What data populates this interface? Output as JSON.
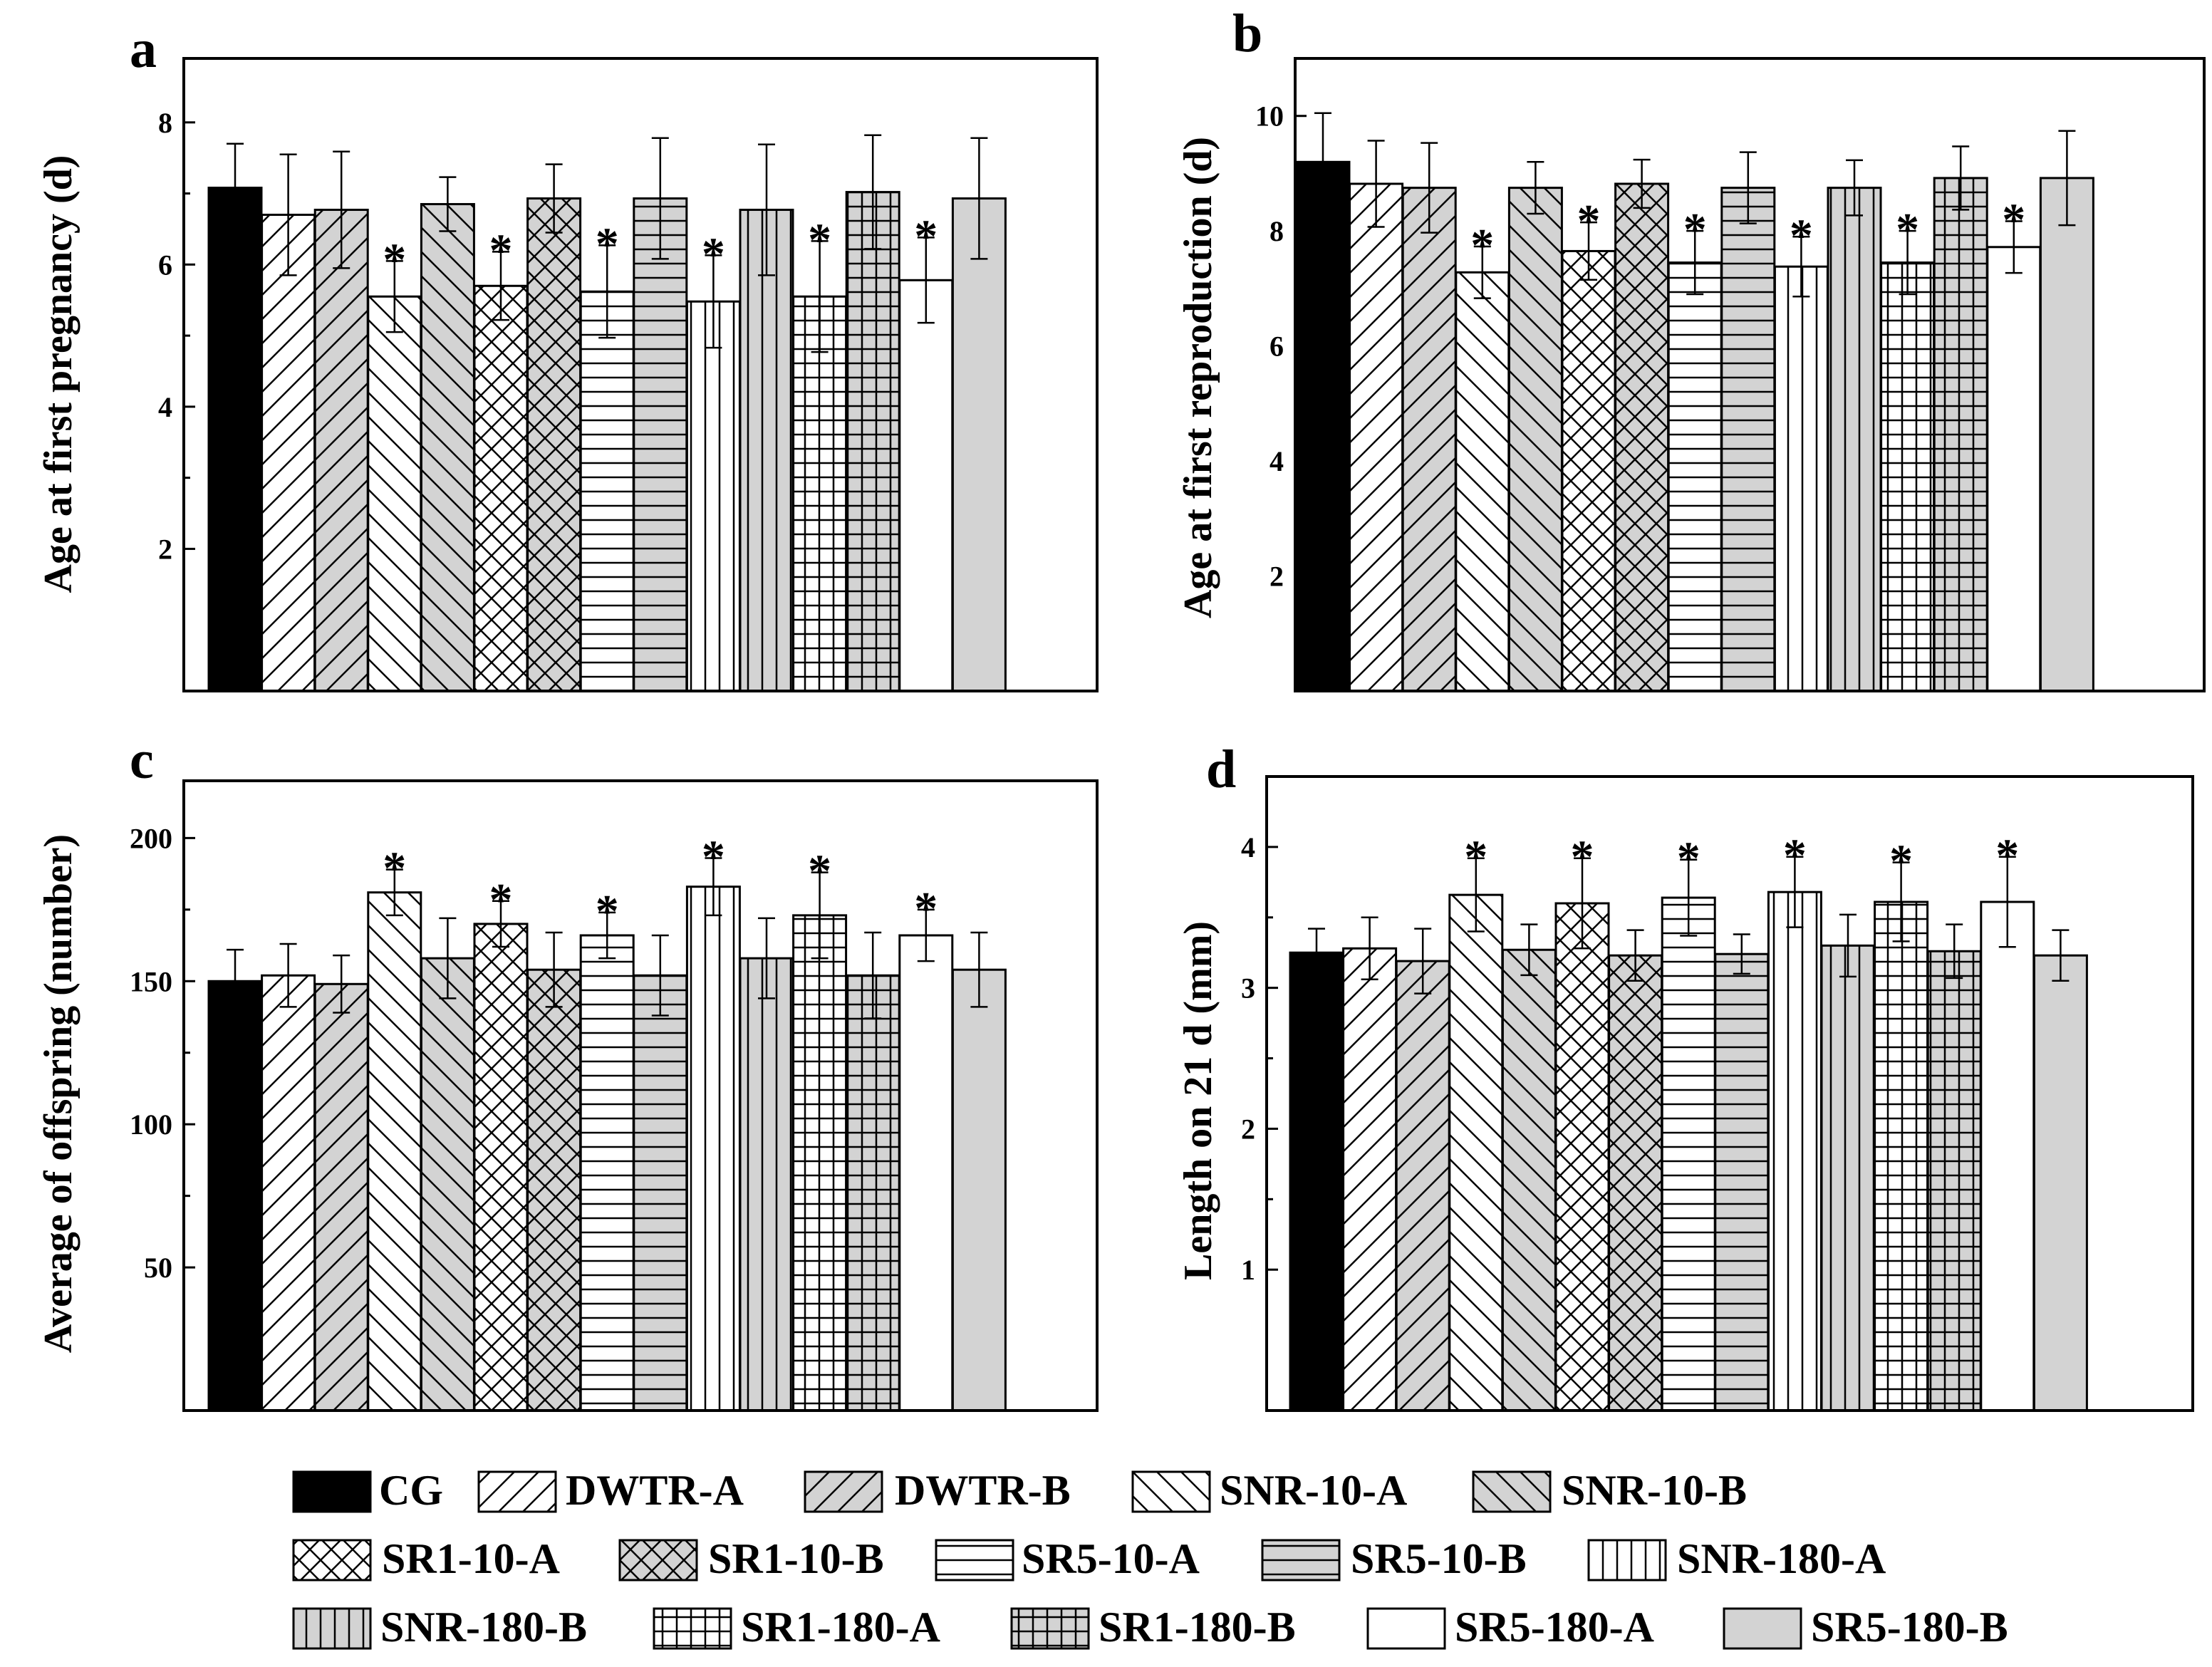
{
  "chart_data": [
    {
      "type": "bar",
      "panel": "a",
      "title": "",
      "xlabel": "",
      "ylabel": "Age at first pregnancy (d)",
      "ylim": [
        0,
        8.9
      ],
      "yticks": [
        2,
        4,
        6,
        8
      ],
      "categories": [
        "CG",
        "DWTR-A",
        "DWTR-B",
        "SNR-10-A",
        "SNR-10-B",
        "SR1-10-A",
        "SR1-10-B",
        "SR5-10-A",
        "SR5-10-B",
        "SNR-180-A",
        "SNR-180-B",
        "SR1-180-A",
        "SR1-180-B",
        "SR5-180-A",
        "SR5-180-B"
      ],
      "values": [
        7.08,
        6.7,
        6.77,
        5.55,
        6.85,
        5.7,
        6.93,
        5.62,
        6.93,
        5.48,
        6.77,
        5.55,
        7.02,
        5.78,
        6.93
      ],
      "errors": [
        0.62,
        0.85,
        0.82,
        0.5,
        0.38,
        0.48,
        0.48,
        0.65,
        0.85,
        0.65,
        0.92,
        0.78,
        0.8,
        0.6,
        0.85
      ],
      "significant": [
        false,
        false,
        false,
        true,
        false,
        true,
        false,
        true,
        false,
        true,
        false,
        true,
        false,
        true,
        false
      ],
      "marker": "*"
    },
    {
      "type": "bar",
      "panel": "b",
      "title": "",
      "xlabel": "",
      "ylabel": "Age at first reproduction (d)",
      "ylim": [
        0,
        11
      ],
      "yticks": [
        2,
        4,
        6,
        8,
        10
      ],
      "categories": [
        "CG",
        "DWTR-A",
        "DWTR-B",
        "SNR-10-A",
        "SNR-10-B",
        "SR1-10-A",
        "SR1-10-B",
        "SR5-10-A",
        "SR5-10-B",
        "SNR-180-A",
        "SNR-180-B",
        "SR1-180-A",
        "SR1-180-B",
        "SR5-180-A",
        "SR5-180-B"
      ],
      "values": [
        9.2,
        8.82,
        8.75,
        7.28,
        8.75,
        7.65,
        8.82,
        7.45,
        8.75,
        7.38,
        8.75,
        7.45,
        8.92,
        7.72,
        8.92
      ],
      "errors": [
        0.85,
        0.75,
        0.78,
        0.45,
        0.45,
        0.5,
        0.42,
        0.55,
        0.62,
        0.52,
        0.48,
        0.55,
        0.55,
        0.45,
        0.82
      ],
      "significant": [
        false,
        false,
        false,
        true,
        false,
        true,
        false,
        true,
        false,
        true,
        false,
        true,
        false,
        true,
        false
      ],
      "marker": "*"
    },
    {
      "type": "bar",
      "panel": "c",
      "title": "",
      "xlabel": "",
      "ylabel": "Average of offspring (number)",
      "ylim": [
        0,
        220
      ],
      "yticks": [
        50,
        100,
        150,
        200
      ],
      "categories": [
        "CG",
        "DWTR-A",
        "DWTR-B",
        "SNR-10-A",
        "SNR-10-B",
        "SR1-10-A",
        "SR1-10-B",
        "SR5-10-A",
        "SR5-10-B",
        "SNR-180-A",
        "SNR-180-B",
        "SR1-180-A",
        "SR1-180-B",
        "SR5-180-A",
        "SR5-180-B"
      ],
      "values": [
        150,
        152,
        149,
        181,
        158,
        170,
        154,
        166,
        152,
        183,
        158,
        173,
        152,
        166,
        154
      ],
      "errors": [
        11,
        11,
        10,
        8,
        14,
        8,
        13,
        8,
        14,
        10,
        14,
        15,
        15,
        9,
        13
      ],
      "significant": [
        false,
        false,
        false,
        true,
        false,
        true,
        false,
        true,
        false,
        true,
        false,
        true,
        false,
        true,
        false
      ],
      "marker": "*"
    },
    {
      "type": "bar",
      "panel": "d",
      "title": "",
      "xlabel": "",
      "ylabel": "Length on 21 d (mm)",
      "ylim": [
        0,
        4.5
      ],
      "yticks": [
        1,
        2,
        3,
        4
      ],
      "categories": [
        "CG",
        "DWTR-A",
        "DWTR-B",
        "SNR-10-A",
        "SNR-10-B",
        "SR1-10-A",
        "SR1-10-B",
        "SR5-10-A",
        "SR5-10-B",
        "SNR-180-A",
        "SNR-180-B",
        "SR1-180-A",
        "SR1-180-B",
        "SR5-180-A",
        "SR5-180-B"
      ],
      "values": [
        3.25,
        3.28,
        3.19,
        3.66,
        3.27,
        3.6,
        3.23,
        3.64,
        3.24,
        3.68,
        3.3,
        3.61,
        3.26,
        3.61,
        3.23
      ],
      "errors": [
        0.17,
        0.22,
        0.23,
        0.26,
        0.18,
        0.32,
        0.18,
        0.27,
        0.14,
        0.25,
        0.22,
        0.28,
        0.19,
        0.32,
        0.18
      ],
      "significant": [
        false,
        false,
        false,
        true,
        false,
        true,
        false,
        true,
        false,
        true,
        false,
        true,
        false,
        true,
        false
      ],
      "marker": "*"
    }
  ],
  "legend": {
    "entries": [
      "CG",
      "DWTR-A",
      "DWTR-B",
      "SNR-10-A",
      "SNR-10-B",
      "SR1-10-A",
      "SR1-10-B",
      "SR5-10-A",
      "SR5-10-B",
      "SNR-180-A",
      "SNR-180-B",
      "SR1-180-A",
      "SR1-180-B",
      "SR5-180-A",
      "SR5-180-B"
    ]
  },
  "colors": {
    "dark": "#000000",
    "gray": "#d3d3d3",
    "white": "#ffffff"
  }
}
